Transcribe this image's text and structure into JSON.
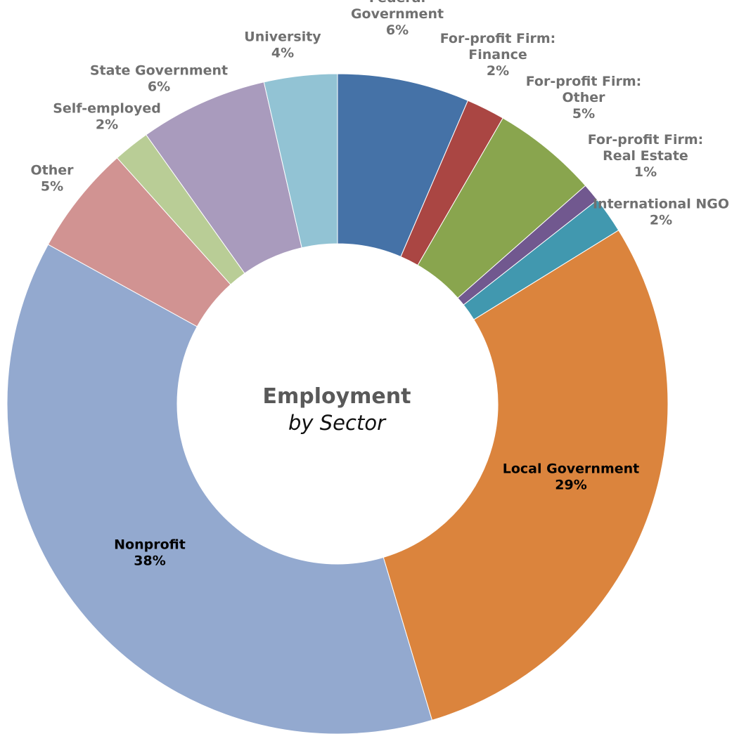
{
  "chart_data": {
    "type": "pie",
    "donut": true,
    "title": "Employment",
    "subtitle": "by Sector",
    "slices": [
      {
        "label": "Federal Government",
        "display_lines": [
          "Federal",
          "Government"
        ],
        "pct_label": "6%",
        "value": 6.5,
        "color": "#4572A7",
        "label_color": "#707070"
      },
      {
        "label": "For-profit Firm: Finance",
        "display_lines": [
          "For-profit Firm:",
          "Finance"
        ],
        "pct_label": "2%",
        "value": 1.9,
        "color": "#AA4643",
        "label_color": "#707070"
      },
      {
        "label": "For-profit Firm: Other",
        "display_lines": [
          "For-profit Firm:",
          "Other"
        ],
        "pct_label": "5%",
        "value": 5.2,
        "color": "#89A54E",
        "label_color": "#707070"
      },
      {
        "label": "For-profit Firm: Real Estate",
        "display_lines": [
          "For-profit Firm:",
          "Real Estate"
        ],
        "pct_label": "1%",
        "value": 0.9,
        "color": "#71588F",
        "label_color": "#707070"
      },
      {
        "label": "International NGO",
        "display_lines": [
          "International NGO"
        ],
        "pct_label": "2%",
        "value": 1.8,
        "color": "#4198AF",
        "label_color": "#707070"
      },
      {
        "label": "Local Government",
        "display_lines": [
          "Local Government"
        ],
        "pct_label": "29%",
        "value": 29.4,
        "color": "#DB843D",
        "label_color": "#000000"
      },
      {
        "label": "Nonprofit",
        "display_lines": [
          "Nonprofit"
        ],
        "pct_label": "38%",
        "value": 37.9,
        "color": "#93A9CF",
        "label_color": "#000000"
      },
      {
        "label": "Other",
        "display_lines": [
          "Other"
        ],
        "pct_label": "5%",
        "value": 5.4,
        "color": "#D19392",
        "label_color": "#707070"
      },
      {
        "label": "Self-employed",
        "display_lines": [
          "Self-employed"
        ],
        "pct_label": "2%",
        "value": 1.8,
        "color": "#B9CD96",
        "label_color": "#707070"
      },
      {
        "label": "State Government",
        "display_lines": [
          "State Government"
        ],
        "pct_label": "6%",
        "value": 6.3,
        "color": "#A99BBD",
        "label_color": "#707070"
      },
      {
        "label": "University",
        "display_lines": [
          "University"
        ],
        "pct_label": "4%",
        "value": 3.6,
        "color": "#92C3D4",
        "label_color": "#707070"
      }
    ]
  }
}
